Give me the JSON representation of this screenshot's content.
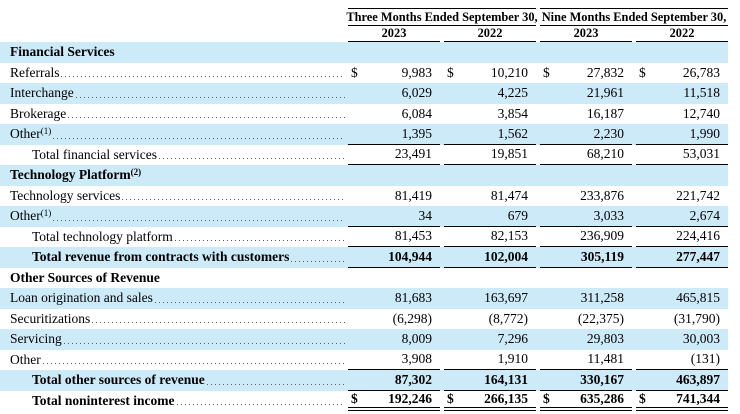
{
  "header": {
    "groups": [
      {
        "label": "Three Months Ended September 30,"
      },
      {
        "label": "Nine Months Ended September 30,"
      }
    ],
    "years": [
      "2023",
      "2022",
      "2023",
      "2022"
    ]
  },
  "colors": {
    "row_shade": "#CDEAF9",
    "rule": "#000000",
    "leader_dots": "#5a5a5a"
  },
  "rows": [
    {
      "type": "section",
      "label": "Financial Services",
      "sup": "",
      "shade": true,
      "bold": true,
      "indent": false,
      "dollar": false,
      "leaders": false,
      "underline": "none",
      "values": [
        "",
        "",
        "",
        ""
      ]
    },
    {
      "type": "data",
      "label": "Referrals",
      "sup": "",
      "shade": false,
      "bold": false,
      "indent": false,
      "dollar": true,
      "leaders": true,
      "underline": "none",
      "values": [
        "9,983",
        "10,210",
        "27,832",
        "26,783"
      ]
    },
    {
      "type": "data",
      "label": "Interchange",
      "sup": "",
      "shade": true,
      "bold": false,
      "indent": false,
      "dollar": false,
      "leaders": true,
      "underline": "none",
      "values": [
        "6,029",
        "4,225",
        "21,961",
        "11,518"
      ]
    },
    {
      "type": "data",
      "label": "Brokerage",
      "sup": "",
      "shade": false,
      "bold": false,
      "indent": false,
      "dollar": false,
      "leaders": true,
      "underline": "none",
      "values": [
        "6,084",
        "3,854",
        "16,187",
        "12,740"
      ]
    },
    {
      "type": "data",
      "label": "Other",
      "sup": "(1)",
      "shade": true,
      "bold": false,
      "indent": false,
      "dollar": false,
      "leaders": true,
      "underline": "single",
      "values": [
        "1,395",
        "1,562",
        "2,230",
        "1,990"
      ]
    },
    {
      "type": "total",
      "label": "Total financial services",
      "sup": "",
      "shade": false,
      "bold": false,
      "indent": true,
      "dollar": false,
      "leaders": true,
      "underline": "single",
      "values": [
        "23,491",
        "19,851",
        "68,210",
        "53,031"
      ]
    },
    {
      "type": "section",
      "label": "Technology Platform",
      "sup": "(2)",
      "shade": true,
      "bold": true,
      "indent": false,
      "dollar": false,
      "leaders": false,
      "underline": "none",
      "values": [
        "",
        "",
        "",
        ""
      ]
    },
    {
      "type": "data",
      "label": "Technology services",
      "sup": "",
      "shade": false,
      "bold": false,
      "indent": false,
      "dollar": false,
      "leaders": true,
      "underline": "none",
      "values": [
        "81,419",
        "81,474",
        "233,876",
        "221,742"
      ]
    },
    {
      "type": "data",
      "label": "Other",
      "sup": "(1)",
      "shade": true,
      "bold": false,
      "indent": false,
      "dollar": false,
      "leaders": true,
      "underline": "single",
      "values": [
        "34",
        "679",
        "3,033",
        "2,674"
      ]
    },
    {
      "type": "total",
      "label": "Total technology platform",
      "sup": "",
      "shade": false,
      "bold": false,
      "indent": true,
      "dollar": false,
      "leaders": true,
      "underline": "single",
      "values": [
        "81,453",
        "82,153",
        "236,909",
        "224,416"
      ]
    },
    {
      "type": "total",
      "label": "Total revenue from contracts with customers",
      "sup": "",
      "shade": true,
      "bold": true,
      "indent": true,
      "dollar": false,
      "leaders": true,
      "underline": "single",
      "values": [
        "104,944",
        "102,004",
        "305,119",
        "277,447"
      ]
    },
    {
      "type": "section",
      "label": "Other Sources of Revenue",
      "sup": "",
      "shade": false,
      "bold": true,
      "indent": false,
      "dollar": false,
      "leaders": false,
      "underline": "none",
      "values": [
        "",
        "",
        "",
        ""
      ]
    },
    {
      "type": "data",
      "label": "Loan origination and sales",
      "sup": "",
      "shade": true,
      "bold": false,
      "indent": false,
      "dollar": false,
      "leaders": true,
      "underline": "none",
      "values": [
        "81,683",
        "163,697",
        "311,258",
        "465,815"
      ]
    },
    {
      "type": "data",
      "label": "Securitizations",
      "sup": "",
      "shade": false,
      "bold": false,
      "indent": false,
      "dollar": false,
      "leaders": true,
      "underline": "none",
      "values": [
        "(6,298)",
        "(8,772)",
        "(22,375)",
        "(31,790)"
      ]
    },
    {
      "type": "data",
      "label": "Servicing",
      "sup": "",
      "shade": true,
      "bold": false,
      "indent": false,
      "dollar": false,
      "leaders": true,
      "underline": "none",
      "values": [
        "8,009",
        "7,296",
        "29,803",
        "30,003"
      ]
    },
    {
      "type": "data",
      "label": "Other",
      "sup": "",
      "shade": false,
      "bold": false,
      "indent": false,
      "dollar": false,
      "leaders": true,
      "underline": "single",
      "values": [
        "3,908",
        "1,910",
        "11,481",
        "(131)"
      ]
    },
    {
      "type": "total",
      "label": "Total other sources of revenue",
      "sup": "",
      "shade": true,
      "bold": true,
      "indent": true,
      "dollar": false,
      "leaders": true,
      "underline": "single",
      "values": [
        "87,302",
        "164,131",
        "330,167",
        "463,897"
      ]
    },
    {
      "type": "total",
      "label": "Total noninterest income",
      "sup": "",
      "shade": false,
      "bold": true,
      "indent": true,
      "dollar": true,
      "leaders": true,
      "underline": "double",
      "values": [
        "192,246",
        "266,135",
        "635,286",
        "741,344"
      ]
    }
  ]
}
